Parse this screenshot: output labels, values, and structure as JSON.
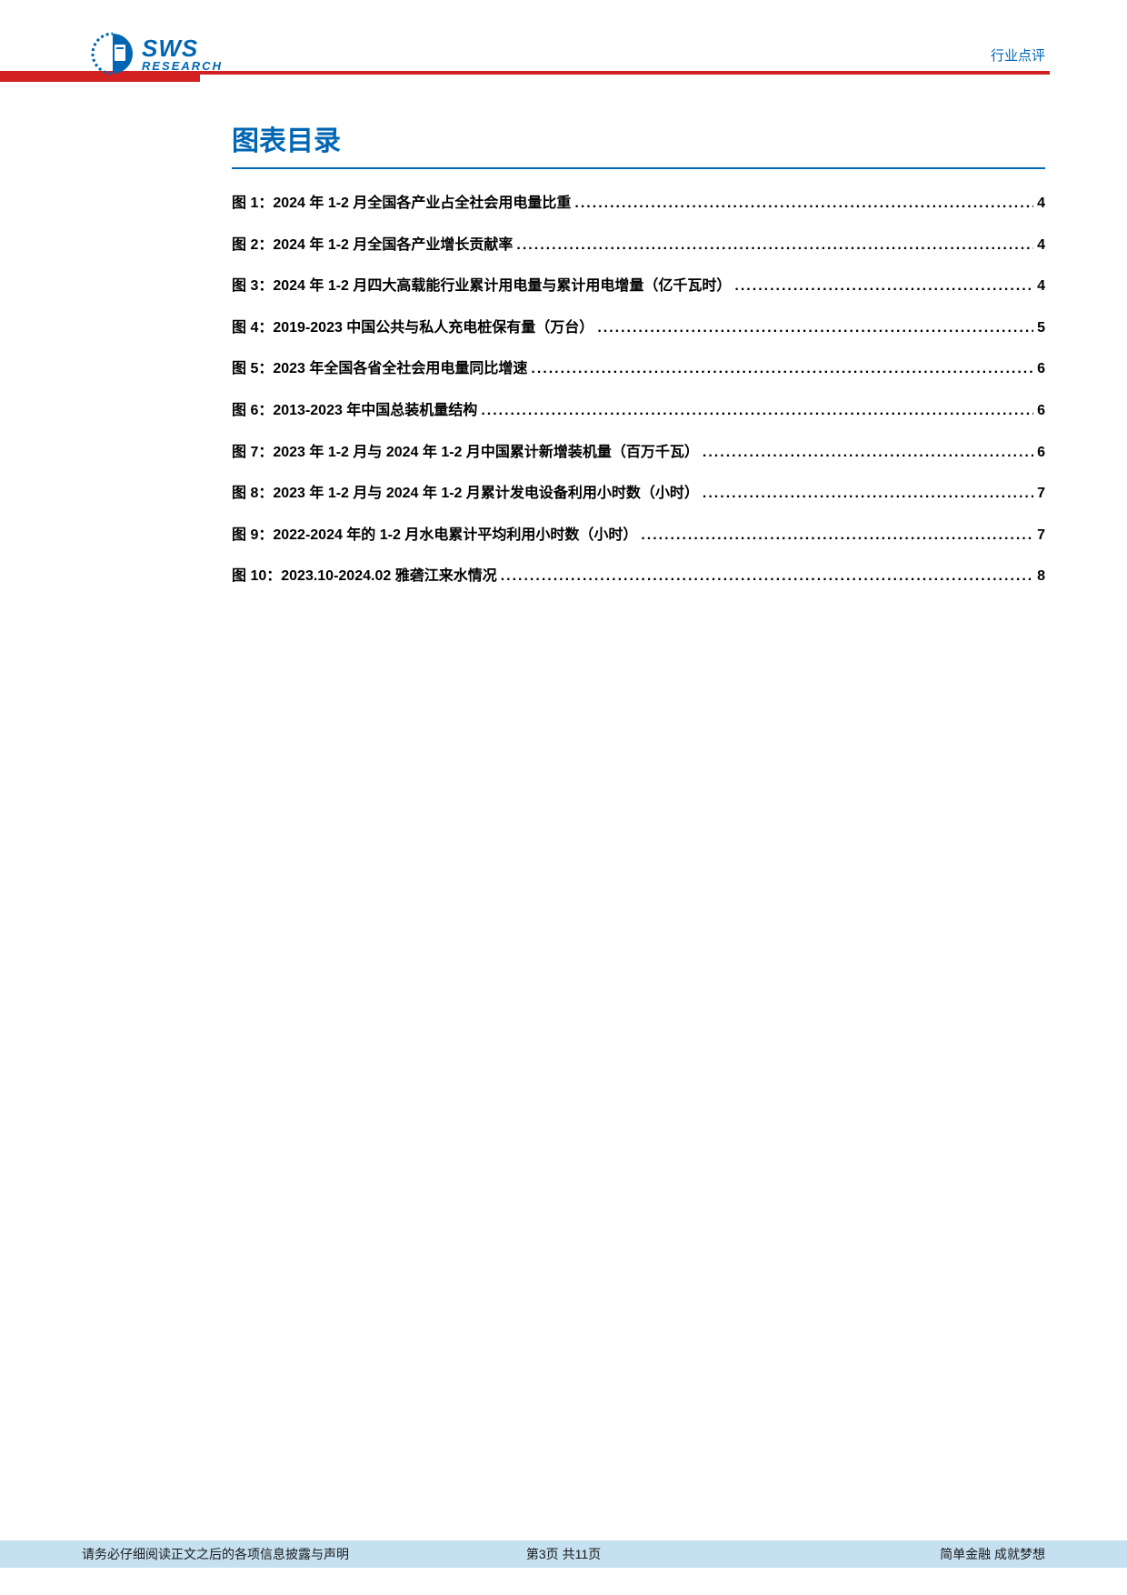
{
  "header": {
    "logo_sws": "SWS",
    "logo_research": "RESEARCH",
    "doc_type": "行业点评",
    "accent_color": "#0066b3",
    "red_color": "#d32020"
  },
  "section_title": "图表目录",
  "toc": [
    {
      "label": "图 1：2024 年 1-2 月全国各产业占全社会用电量比重",
      "page": "4"
    },
    {
      "label": "图 2：2024 年 1-2 月全国各产业增长贡献率",
      "page": "4"
    },
    {
      "label": "图 3：2024 年 1-2 月四大高载能行业累计用电量与累计用电增量（亿千瓦时）",
      "page": "4"
    },
    {
      "label": "图 4：2019-2023 中国公共与私人充电桩保有量（万台）",
      "page": "5"
    },
    {
      "label": "图 5：2023 年全国各省全社会用电量同比增速",
      "page": "6"
    },
    {
      "label": "图 6：2013-2023 年中国总装机量结构",
      "page": "6"
    },
    {
      "label": "图 7：2023 年 1-2 月与 2024 年 1-2 月中国累计新增装机量（百万千瓦）",
      "page": "6"
    },
    {
      "label": "图 8：2023 年 1-2 月与 2024 年 1-2 月累计发电设备利用小时数（小时）",
      "page": "7"
    },
    {
      "label": "图 9：2022-2024 年的 1-2 月水电累计平均利用小时数（小时）",
      "page": "7"
    },
    {
      "label": "图 10：2023.10-2024.02 雅砻江来水情况",
      "page": "8"
    }
  ],
  "footer": {
    "left": "请务必仔细阅读正文之后的各项信息披露与声明",
    "center": "第3页 共11页",
    "right": "简单金融 成就梦想",
    "background_color": "#c5e0f0"
  }
}
